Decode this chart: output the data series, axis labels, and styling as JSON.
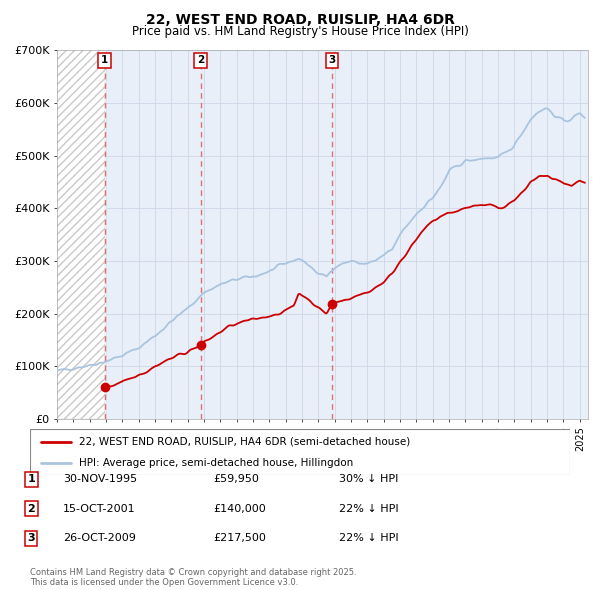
{
  "title": "22, WEST END ROAD, RUISLIP, HA4 6DR",
  "subtitle": "Price paid vs. HM Land Registry's House Price Index (HPI)",
  "xlim": [
    1993,
    2025.5
  ],
  "ylim": [
    0,
    700000
  ],
  "yticks": [
    0,
    100000,
    200000,
    300000,
    400000,
    500000,
    600000,
    700000
  ],
  "ytick_labels": [
    "£0",
    "£100K",
    "£200K",
    "£300K",
    "£400K",
    "£500K",
    "£600K",
    "£700K"
  ],
  "hpi_color": "#aac4e0",
  "price_color": "#cc0000",
  "vline_color": "#e07070",
  "transaction_dates": [
    1995.92,
    2001.79,
    2009.82
  ],
  "transaction_prices": [
    59950,
    140000,
    217500
  ],
  "transaction_labels": [
    "1",
    "2",
    "3"
  ],
  "legend_line1": "22, WEST END ROAD, RUISLIP, HA4 6DR (semi-detached house)",
  "legend_line2": "HPI: Average price, semi-detached house, Hillingdon",
  "table_rows": [
    [
      "1",
      "30-NOV-1995",
      "£59,950",
      "30% ↓ HPI"
    ],
    [
      "2",
      "15-OCT-2001",
      "£140,000",
      "22% ↓ HPI"
    ],
    [
      "3",
      "26-OCT-2009",
      "£217,500",
      "22% ↓ HPI"
    ]
  ],
  "footnote": "Contains HM Land Registry data © Crown copyright and database right 2025.\nThis data is licensed under the Open Government Licence v3.0.",
  "background_hatch_color": "#c8c8c8",
  "grid_color": "#d0d8e8",
  "plot_bg_color": "#e8eff8"
}
